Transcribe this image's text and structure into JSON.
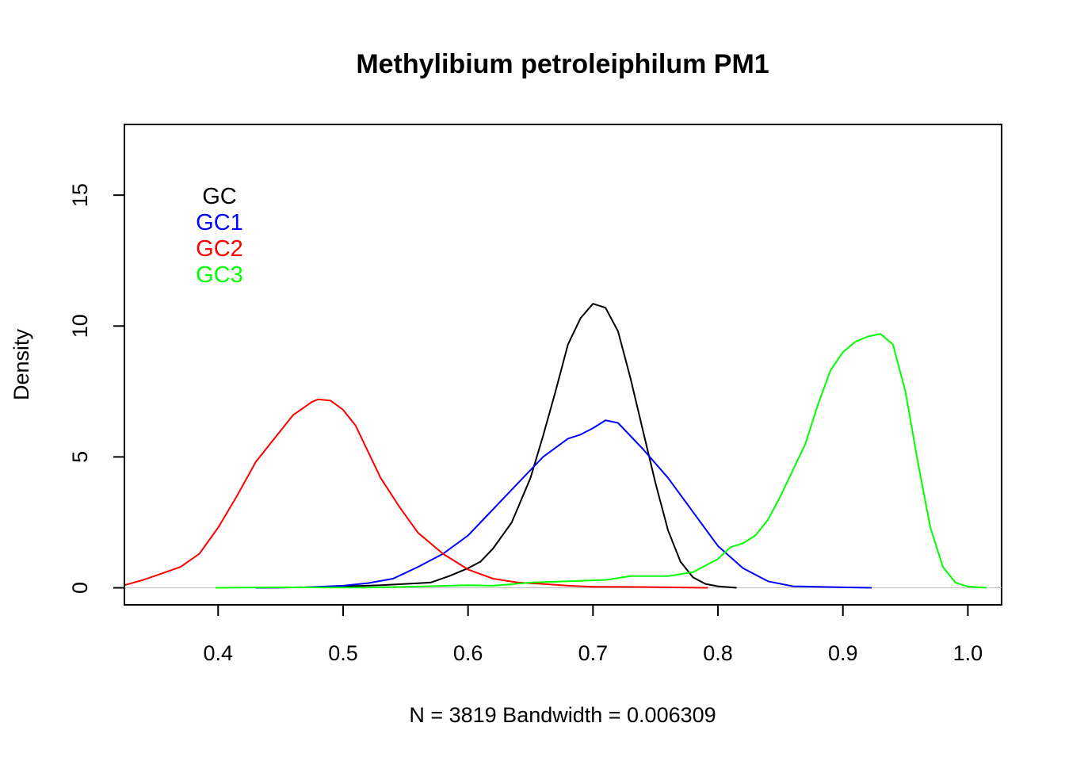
{
  "chart_data": {
    "type": "line",
    "title": "Methylibium petroleiphilum PM1",
    "xlabel": "N = 3819   Bandwidth = 0.006309",
    "ylabel": "Density",
    "xlim": [
      0.325,
      1.027
    ],
    "ylim": [
      -0.65,
      17.7
    ],
    "xticks": [
      0.4,
      0.5,
      0.6,
      0.7,
      0.8,
      0.9,
      1.0
    ],
    "xtick_labels": [
      "0.4",
      "0.5",
      "0.6",
      "0.7",
      "0.8",
      "0.9",
      "1.0"
    ],
    "yticks": [
      0,
      5,
      10,
      15
    ],
    "ytick_labels": [
      "0",
      "5",
      "10",
      "15"
    ],
    "baseline": {
      "y": 0,
      "color": "#bebebe"
    },
    "grid": false,
    "legend": {
      "position": "top-left",
      "entries": [
        {
          "label": "GC",
          "color": "#000000"
        },
        {
          "label": "GC1",
          "color": "#0000ff"
        },
        {
          "label": "GC2",
          "color": "#ff0000"
        },
        {
          "label": "GC3",
          "color": "#00ff00"
        }
      ]
    },
    "series": [
      {
        "name": "GC",
        "color": "#000000",
        "points": [
          [
            0.43,
            0
          ],
          [
            0.47,
            0.02
          ],
          [
            0.5,
            0.05
          ],
          [
            0.53,
            0.1
          ],
          [
            0.55,
            0.15
          ],
          [
            0.57,
            0.2
          ],
          [
            0.585,
            0.45
          ],
          [
            0.6,
            0.75
          ],
          [
            0.61,
            1.0
          ],
          [
            0.62,
            1.5
          ],
          [
            0.635,
            2.5
          ],
          [
            0.65,
            4.2
          ],
          [
            0.66,
            5.8
          ],
          [
            0.67,
            7.5
          ],
          [
            0.68,
            9.3
          ],
          [
            0.69,
            10.3
          ],
          [
            0.7,
            10.85
          ],
          [
            0.71,
            10.7
          ],
          [
            0.72,
            9.8
          ],
          [
            0.73,
            8.0
          ],
          [
            0.74,
            6.0
          ],
          [
            0.75,
            4.0
          ],
          [
            0.76,
            2.2
          ],
          [
            0.77,
            1.0
          ],
          [
            0.78,
            0.4
          ],
          [
            0.79,
            0.15
          ],
          [
            0.8,
            0.06
          ],
          [
            0.815,
            0
          ]
        ]
      },
      {
        "name": "GC1",
        "color": "#0000ff",
        "points": [
          [
            0.43,
            0
          ],
          [
            0.47,
            0.02
          ],
          [
            0.5,
            0.08
          ],
          [
            0.52,
            0.18
          ],
          [
            0.54,
            0.35
          ],
          [
            0.56,
            0.8
          ],
          [
            0.58,
            1.3
          ],
          [
            0.6,
            2.0
          ],
          [
            0.62,
            3.0
          ],
          [
            0.64,
            4.0
          ],
          [
            0.66,
            5.0
          ],
          [
            0.68,
            5.7
          ],
          [
            0.69,
            5.85
          ],
          [
            0.7,
            6.1
          ],
          [
            0.71,
            6.4
          ],
          [
            0.72,
            6.3
          ],
          [
            0.73,
            5.8
          ],
          [
            0.74,
            5.3
          ],
          [
            0.76,
            4.2
          ],
          [
            0.78,
            2.9
          ],
          [
            0.8,
            1.6
          ],
          [
            0.82,
            0.75
          ],
          [
            0.84,
            0.25
          ],
          [
            0.86,
            0.06
          ],
          [
            0.88,
            0.04
          ],
          [
            0.9,
            0.02
          ],
          [
            0.923,
            0
          ]
        ]
      },
      {
        "name": "GC2",
        "color": "#ff0000",
        "points": [
          [
            0.325,
            0.1
          ],
          [
            0.34,
            0.3
          ],
          [
            0.355,
            0.55
          ],
          [
            0.37,
            0.8
          ],
          [
            0.385,
            1.3
          ],
          [
            0.4,
            2.3
          ],
          [
            0.415,
            3.5
          ],
          [
            0.43,
            4.8
          ],
          [
            0.445,
            5.7
          ],
          [
            0.46,
            6.6
          ],
          [
            0.475,
            7.1
          ],
          [
            0.48,
            7.2
          ],
          [
            0.49,
            7.15
          ],
          [
            0.5,
            6.8
          ],
          [
            0.51,
            6.2
          ],
          [
            0.52,
            5.2
          ],
          [
            0.53,
            4.2
          ],
          [
            0.545,
            3.1
          ],
          [
            0.56,
            2.1
          ],
          [
            0.58,
            1.3
          ],
          [
            0.6,
            0.7
          ],
          [
            0.62,
            0.35
          ],
          [
            0.64,
            0.2
          ],
          [
            0.66,
            0.15
          ],
          [
            0.68,
            0.08
          ],
          [
            0.7,
            0.04
          ],
          [
            0.74,
            0.03
          ],
          [
            0.76,
            0.02
          ],
          [
            0.792,
            0
          ]
        ]
      },
      {
        "name": "GC3",
        "color": "#00ff00",
        "points": [
          [
            0.398,
            0
          ],
          [
            0.45,
            0.02
          ],
          [
            0.52,
            0.01
          ],
          [
            0.56,
            0.05
          ],
          [
            0.6,
            0.1
          ],
          [
            0.62,
            0.08
          ],
          [
            0.65,
            0.2
          ],
          [
            0.68,
            0.25
          ],
          [
            0.71,
            0.3
          ],
          [
            0.73,
            0.45
          ],
          [
            0.76,
            0.45
          ],
          [
            0.78,
            0.6
          ],
          [
            0.8,
            1.1
          ],
          [
            0.81,
            1.55
          ],
          [
            0.82,
            1.7
          ],
          [
            0.83,
            2.0
          ],
          [
            0.84,
            2.6
          ],
          [
            0.85,
            3.5
          ],
          [
            0.87,
            5.5
          ],
          [
            0.88,
            7.0
          ],
          [
            0.89,
            8.3
          ],
          [
            0.9,
            9.0
          ],
          [
            0.91,
            9.4
          ],
          [
            0.92,
            9.6
          ],
          [
            0.93,
            9.7
          ],
          [
            0.94,
            9.3
          ],
          [
            0.95,
            7.5
          ],
          [
            0.96,
            4.8
          ],
          [
            0.97,
            2.3
          ],
          [
            0.98,
            0.8
          ],
          [
            0.99,
            0.2
          ],
          [
            1.0,
            0.05
          ],
          [
            1.015,
            0
          ]
        ]
      }
    ]
  }
}
